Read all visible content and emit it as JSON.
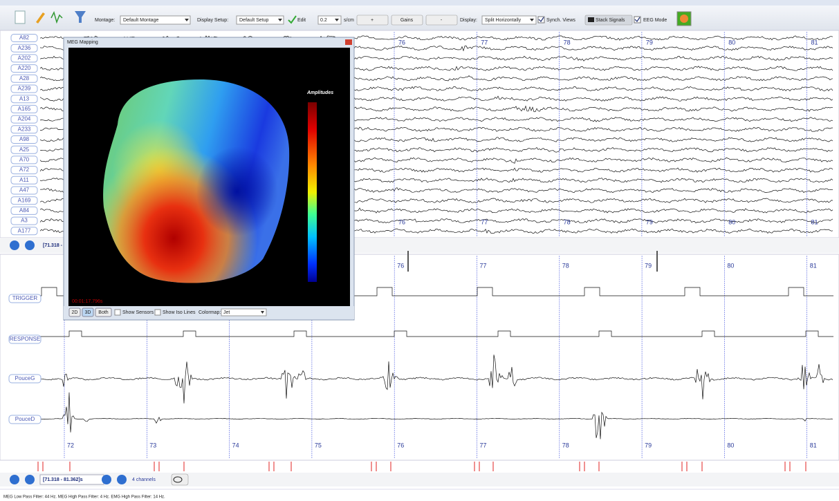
{
  "toolbar": {
    "montage_label": "Montage:",
    "montage": "Default Montage",
    "display_setup_label": "Display Setup:",
    "display_setup": "Default Setup",
    "edit": "Edit",
    "timebase": "0.2",
    "timebase_unit": "s/cm",
    "plus": "+",
    "gains": "Gains",
    "minus": "-",
    "display_label": "Display:",
    "display": "Split Horizontally",
    "synch_views": "Synch. Views",
    "stack_signals": "Stack Signals",
    "eeg_mode": "EEG Mode"
  },
  "top_panel": {
    "channels": [
      "A82",
      "A236",
      "A202",
      "A220",
      "A28",
      "A239",
      "A13",
      "A165",
      "A204",
      "A233",
      "A98",
      "A25",
      "A70",
      "A72",
      "A11",
      "A47",
      "A169",
      "A84",
      "A3",
      "A177"
    ],
    "time_labels": [
      76,
      77,
      78,
      79,
      80,
      81
    ],
    "range": "[71.318 -"
  },
  "meg_window": {
    "title": "MEG Mapping",
    "legend_title": "Amplitudes",
    "time": "00:01:17.796s",
    "buttons": [
      "2D",
      "3D",
      "Both"
    ],
    "show_sensors": "Show Sensors",
    "show_iso_lines": "Show Iso Lines",
    "colormap_label": "Colormap:",
    "colormap": "Jet"
  },
  "bottom_panel": {
    "channels": [
      "TRIGGER",
      "RESPONSE",
      "PouceG",
      "PouceD"
    ],
    "time_labels": [
      72,
      73,
      74,
      75,
      76,
      77,
      78,
      79,
      80,
      81
    ],
    "range": "[71.318 - 81.362]s",
    "channel_count": "4 channels"
  },
  "status": "MEG Low Pass Filter: 44 Hz. MEG High Pass Filter: 4 Hz. EMG High Pass Filter: 14 Hz."
}
